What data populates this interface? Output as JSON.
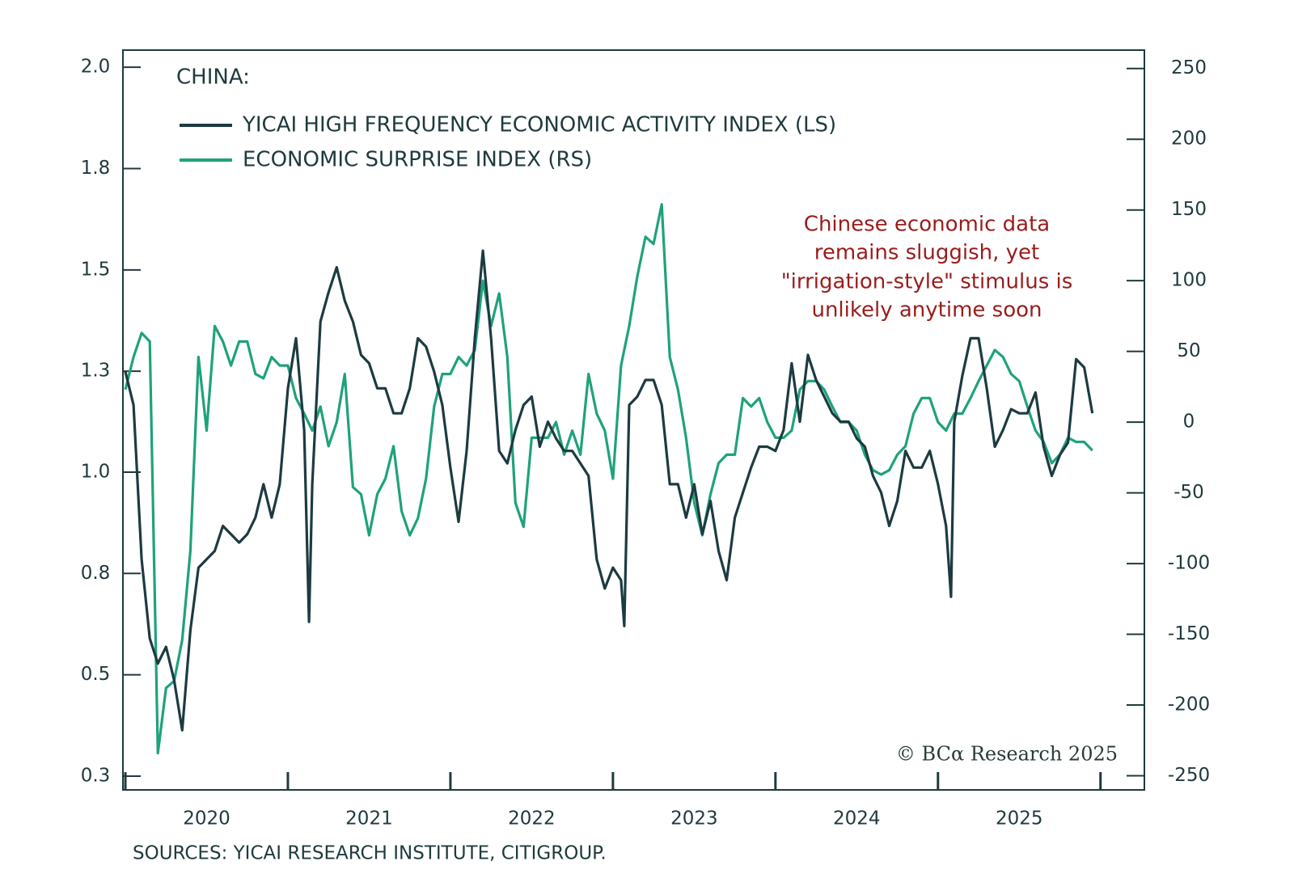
{
  "chart_data": {
    "type": "line",
    "subtitle": "CHINA:",
    "annotation": [
      "Chinese economic data",
      "remains sluggish, yet",
      "\"irrigation-style\" stimulus is",
      "unlikely anytime soon"
    ],
    "watermark": "© BCα Research 2025",
    "source": "SOURCES: YICAI RESEARCH INSTITUTE, CITIGROUP.",
    "xlim": [
      2019.985,
      2026.27
    ],
    "xticks": [
      {
        "value": 2020.5,
        "label": "2020"
      },
      {
        "value": 2021.5,
        "label": "2021"
      },
      {
        "value": 2022.5,
        "label": "2022"
      },
      {
        "value": 2023.5,
        "label": "2023"
      },
      {
        "value": 2024.5,
        "label": "2024"
      },
      {
        "value": 2025.5,
        "label": "2025"
      }
    ],
    "xtick_marks": [
      2020,
      2021,
      2022,
      2023,
      2024,
      2025,
      2026
    ],
    "ylim": [
      0.267,
      2.041
    ],
    "yticks": [
      0.3,
      {
        "value": 0.543,
        "label": "0.5"
      },
      {
        "value": 0.786,
        "label": "0.8"
      },
      {
        "value": 1.029,
        "label": "1.0"
      },
      {
        "value": 1.271,
        "label": "1.3"
      },
      {
        "value": 1.514,
        "label": "1.5"
      },
      {
        "value": 1.757,
        "label": "1.8"
      },
      {
        "value": 2,
        "label": "2.0"
      }
    ],
    "y2lim": [
      -260,
      263
    ],
    "y2ticks": [
      250,
      200,
      150,
      100,
      50,
      0,
      -50,
      -100,
      -150,
      -200,
      -250
    ],
    "series": [
      {
        "name": "YICAI HIGH FREQUENCY ECONOMIC ACTIVITY INDEX (LS)",
        "color": "#1d3b40",
        "x": [
          2020,
          2020.05,
          2020.1,
          2020.15,
          2020.2,
          2020.25,
          2020.3,
          2020.35,
          2020.4,
          2020.45,
          2020.5,
          2020.55,
          2020.6,
          2020.65,
          2020.7,
          2020.75,
          2020.8,
          2020.85,
          2020.9,
          2020.95,
          2021,
          2021.05,
          2021.1,
          2021.13,
          2021.15,
          2021.2,
          2021.25,
          2021.3,
          2021.35,
          2021.4,
          2021.45,
          2021.5,
          2021.55,
          2021.6,
          2021.65,
          2021.7,
          2021.75,
          2021.8,
          2021.85,
          2021.9,
          2021.95,
          2022,
          2022.05,
          2022.1,
          2022.15,
          2022.2,
          2022.25,
          2022.3,
          2022.35,
          2022.4,
          2022.45,
          2022.5,
          2022.55,
          2022.6,
          2022.65,
          2022.7,
          2022.75,
          2022.8,
          2022.85,
          2022.9,
          2022.95,
          2023,
          2023.05,
          2023.07,
          2023.1,
          2023.15,
          2023.2,
          2023.25,
          2023.3,
          2023.35,
          2023.4,
          2023.45,
          2023.5,
          2023.55,
          2023.6,
          2023.65,
          2023.7,
          2023.75,
          2023.8,
          2023.85,
          2023.9,
          2023.95,
          2024,
          2024.05,
          2024.1,
          2024.15,
          2024.2,
          2024.25,
          2024.3,
          2024.35,
          2024.4,
          2024.45,
          2024.5,
          2024.55,
          2024.6,
          2024.65,
          2024.7,
          2024.75,
          2024.8,
          2024.85,
          2024.9,
          2024.95,
          2025,
          2025.05,
          2025.08,
          2025.1,
          2025.15,
          2025.2,
          2025.25,
          2025.3,
          2025.35,
          2025.4,
          2025.45,
          2025.5,
          2025.55,
          2025.6,
          2025.65,
          2025.7,
          2025.75,
          2025.8,
          2025.85,
          2025.9,
          2025.95
        ],
        "values": [
          1.27,
          1.19,
          0.82,
          0.63,
          0.57,
          0.61,
          0.53,
          0.41,
          0.65,
          0.8,
          0.82,
          0.84,
          0.9,
          0.88,
          0.86,
          0.88,
          0.92,
          1.0,
          0.92,
          1.0,
          1.23,
          1.35,
          1.13,
          0.67,
          1.0,
          1.39,
          1.46,
          1.52,
          1.44,
          1.39,
          1.31,
          1.29,
          1.23,
          1.23,
          1.17,
          1.17,
          1.23,
          1.35,
          1.33,
          1.27,
          1.19,
          1.04,
          0.91,
          1.08,
          1.35,
          1.56,
          1.35,
          1.08,
          1.05,
          1.13,
          1.19,
          1.21,
          1.09,
          1.15,
          1.11,
          1.08,
          1.08,
          1.05,
          1.02,
          0.82,
          0.75,
          0.8,
          0.77,
          0.66,
          1.19,
          1.21,
          1.25,
          1.25,
          1.19,
          1.0,
          1.0,
          0.92,
          1.0,
          0.88,
          0.96,
          0.84,
          0.77,
          0.92,
          0.98,
          1.04,
          1.09,
          1.09,
          1.08,
          1.13,
          1.29,
          1.15,
          1.31,
          1.25,
          1.21,
          1.17,
          1.15,
          1.15,
          1.11,
          1.09,
          1.02,
          0.98,
          0.9,
          0.96,
          1.08,
          1.04,
          1.04,
          1.08,
          1.0,
          0.9,
          0.73,
          1.15,
          1.26,
          1.35,
          1.35,
          1.23,
          1.09,
          1.13,
          1.18,
          1.17,
          1.17,
          1.22,
          1.09,
          1.02,
          1.07,
          1.1,
          1.3,
          1.28,
          1.17
        ]
      },
      {
        "name": "ECONOMIC SURPRISE INDEX (RS)",
        "color": "#1fa27c",
        "axis": "y2",
        "x": [
          2020,
          2020.05,
          2020.1,
          2020.15,
          2020.2,
          2020.25,
          2020.3,
          2020.35,
          2020.4,
          2020.45,
          2020.5,
          2020.55,
          2020.6,
          2020.65,
          2020.7,
          2020.75,
          2020.8,
          2020.85,
          2020.9,
          2020.95,
          2021,
          2021.05,
          2021.1,
          2021.15,
          2021.2,
          2021.25,
          2021.3,
          2021.35,
          2021.4,
          2021.45,
          2021.5,
          2021.55,
          2021.6,
          2021.65,
          2021.7,
          2021.75,
          2021.8,
          2021.85,
          2021.9,
          2021.95,
          2022,
          2022.05,
          2022.1,
          2022.15,
          2022.2,
          2022.25,
          2022.3,
          2022.35,
          2022.4,
          2022.45,
          2022.5,
          2022.55,
          2022.6,
          2022.65,
          2022.7,
          2022.75,
          2022.8,
          2022.85,
          2022.9,
          2022.95,
          2023,
          2023.05,
          2023.1,
          2023.15,
          2023.2,
          2023.25,
          2023.3,
          2023.35,
          2023.4,
          2023.45,
          2023.5,
          2023.55,
          2023.6,
          2023.65,
          2023.7,
          2023.75,
          2023.8,
          2023.85,
          2023.9,
          2023.95,
          2024,
          2024.05,
          2024.1,
          2024.15,
          2024.2,
          2024.25,
          2024.3,
          2024.35,
          2024.4,
          2024.45,
          2024.5,
          2024.55,
          2024.6,
          2024.65,
          2024.7,
          2024.75,
          2024.8,
          2024.85,
          2024.9,
          2024.95,
          2025,
          2025.05,
          2025.1,
          2025.15,
          2025.2,
          2025.25,
          2025.3,
          2025.35,
          2025.4,
          2025.45,
          2025.5,
          2025.55,
          2025.6,
          2025.65,
          2025.7,
          2025.75,
          2025.8,
          2025.85,
          2025.9,
          2025.95
        ],
        "values": [
          23,
          46,
          63,
          57,
          -234,
          -188,
          -183,
          -154,
          -91,
          46,
          -6,
          68,
          57,
          40,
          57,
          57,
          34,
          31,
          46,
          40,
          40,
          17,
          6,
          -6,
          11,
          -17,
          0,
          34,
          -46,
          -51,
          -80,
          -51,
          -40,
          -17,
          -63,
          -80,
          -68,
          -40,
          11,
          34,
          34,
          46,
          40,
          51,
          100,
          68,
          91,
          46,
          -57,
          -74,
          -11,
          -11,
          -11,
          0,
          -23,
          -6,
          -23,
          34,
          6,
          -6,
          -40,
          40,
          68,
          103,
          131,
          126,
          154,
          46,
          23,
          -11,
          -57,
          -80,
          -51,
          -29,
          -23,
          -23,
          17,
          11,
          17,
          0,
          -11,
          -11,
          -6,
          23,
          29,
          29,
          23,
          11,
          0,
          0,
          -6,
          -23,
          -34,
          -37,
          -34,
          -23,
          -17,
          6,
          17,
          17,
          0,
          -6,
          6,
          6,
          17,
          29,
          40,
          51,
          46,
          34,
          29,
          11,
          -6,
          -14,
          -29,
          -23,
          -11,
          -14,
          -14,
          -20
        ]
      }
    ]
  }
}
